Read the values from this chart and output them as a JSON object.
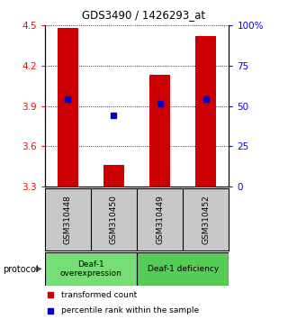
{
  "title": "GDS3490 / 1426293_at",
  "samples": [
    "GSM310448",
    "GSM310450",
    "GSM310449",
    "GSM310452"
  ],
  "bar_values": [
    4.48,
    3.46,
    4.13,
    4.42
  ],
  "percentile_values": [
    3.95,
    3.83,
    3.92,
    3.95
  ],
  "bar_color": "#cc0000",
  "percentile_color": "#0000cc",
  "ylim_left": [
    3.3,
    4.5
  ],
  "ylim_right": [
    0,
    100
  ],
  "yticks_left": [
    3.3,
    3.6,
    3.9,
    4.2,
    4.5
  ],
  "yticks_right": [
    0,
    25,
    50,
    75,
    100
  ],
  "ytick_labels_left": [
    "3.3",
    "3.6",
    "3.9",
    "4.2",
    "4.5"
  ],
  "ytick_labels_right": [
    "0",
    "25",
    "50",
    "75",
    "100%"
  ],
  "groups": [
    {
      "label": "Deaf-1\noverexpression",
      "samples": [
        0,
        1
      ],
      "color": "#77dd77"
    },
    {
      "label": "Deaf-1 deficiency",
      "samples": [
        2,
        3
      ],
      "color": "#55cc55"
    }
  ],
  "protocol_label": "protocol",
  "legend_bar_label": "transformed count",
  "legend_pct_label": "percentile rank within the sample",
  "bar_width": 0.45,
  "background_color": "#ffffff",
  "plot_bg_color": "#ffffff",
  "sample_bg_color": "#c8c8c8"
}
